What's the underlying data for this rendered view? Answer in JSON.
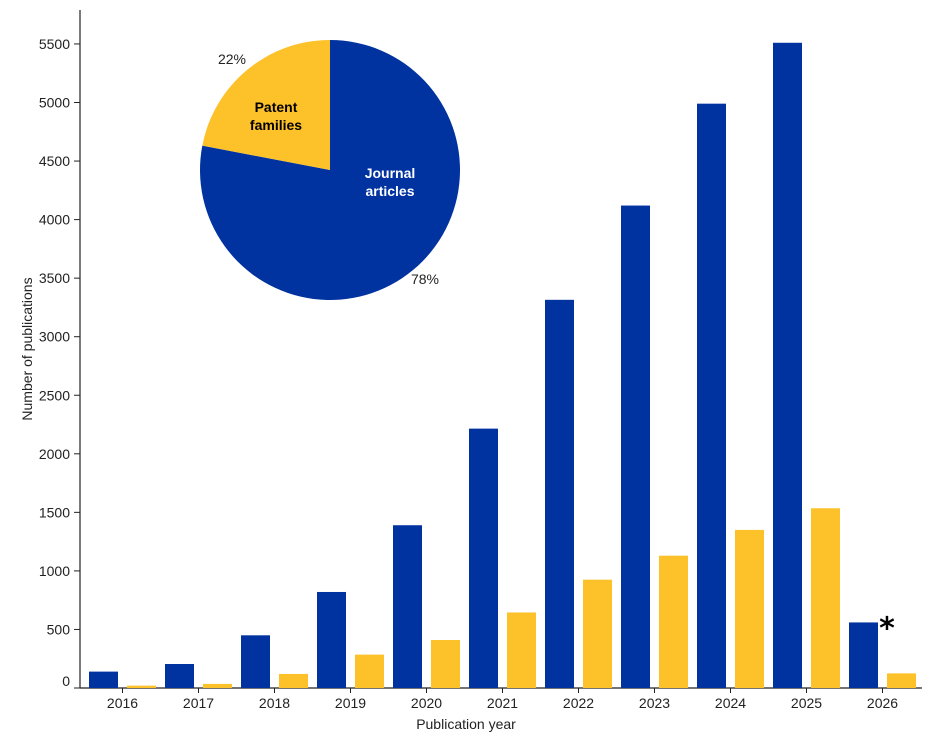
{
  "chart_data": [
    {
      "type": "bar",
      "xlabel": "Publication year",
      "ylabel": "Number of publications",
      "ylim": [
        0,
        5700
      ],
      "yticks": [
        0,
        500,
        1000,
        1500,
        2000,
        2500,
        3000,
        3500,
        4000,
        4500,
        5000,
        5500
      ],
      "categories": [
        "2016",
        "2017",
        "2018",
        "2019",
        "2020",
        "2021",
        "2022",
        "2023",
        "2024",
        "2025",
        "2026"
      ],
      "series": [
        {
          "key": "journal",
          "color": "#0033A0",
          "values": [
            140,
            205,
            450,
            820,
            1390,
            2215,
            3315,
            4120,
            4990,
            5510,
            560
          ]
        },
        {
          "key": "patent",
          "color": "#FDC12A",
          "values": [
            20,
            35,
            120,
            285,
            410,
            645,
            925,
            1130,
            1350,
            1535,
            125
          ]
        }
      ],
      "annotations": [
        {
          "text": "*",
          "category": "2026"
        }
      ],
      "grid": false
    },
    {
      "type": "pie",
      "slices": [
        {
          "label_lines": [
            "Journal",
            "articles"
          ],
          "percent_label": "78%",
          "value": 78,
          "color": "#0033A0",
          "label_color": "#ffffff"
        },
        {
          "label_lines": [
            "Patent",
            "families"
          ],
          "percent_label": "22%",
          "value": 22,
          "color": "#FDC12A",
          "label_color": "#000000"
        }
      ]
    }
  ]
}
